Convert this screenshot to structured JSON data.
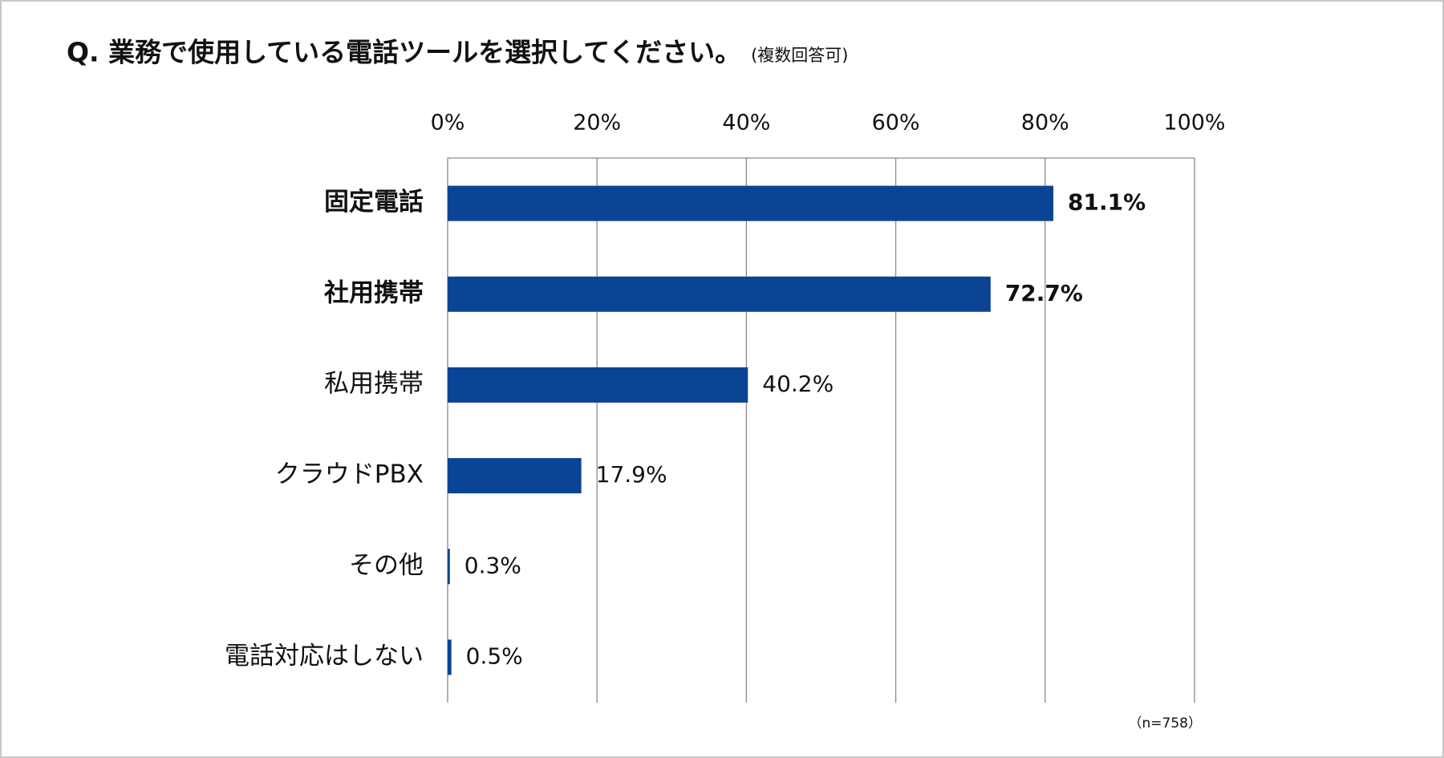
{
  "chart_data": {
    "type": "bar",
    "orientation": "horizontal",
    "title": "Q. 業務で使用している電話ツールを選択してください。",
    "subtitle": "(複数回答可)",
    "note": "（n=758）",
    "categories": [
      "固定電話",
      "社用携帯",
      "私用携帯",
      "クラウドPBX",
      "その他",
      "電話対応はしない"
    ],
    "values": [
      81.1,
      72.7,
      40.2,
      17.9,
      0.3,
      0.5
    ],
    "value_labels": [
      "81.1%",
      "72.7%",
      "40.2%",
      "17.9%",
      "0.3%",
      "0.5%"
    ],
    "color": "#0b4395",
    "xlim": [
      0,
      100
    ],
    "xticks": [
      {
        "value": 0,
        "label": "0%"
      },
      {
        "value": 20,
        "label": "20%"
      },
      {
        "value": 40,
        "label": "40%"
      },
      {
        "value": 60,
        "label": "60%"
      },
      {
        "value": 80,
        "label": "80%"
      },
      {
        "value": 100,
        "label": "100%"
      }
    ],
    "grid": true
  }
}
